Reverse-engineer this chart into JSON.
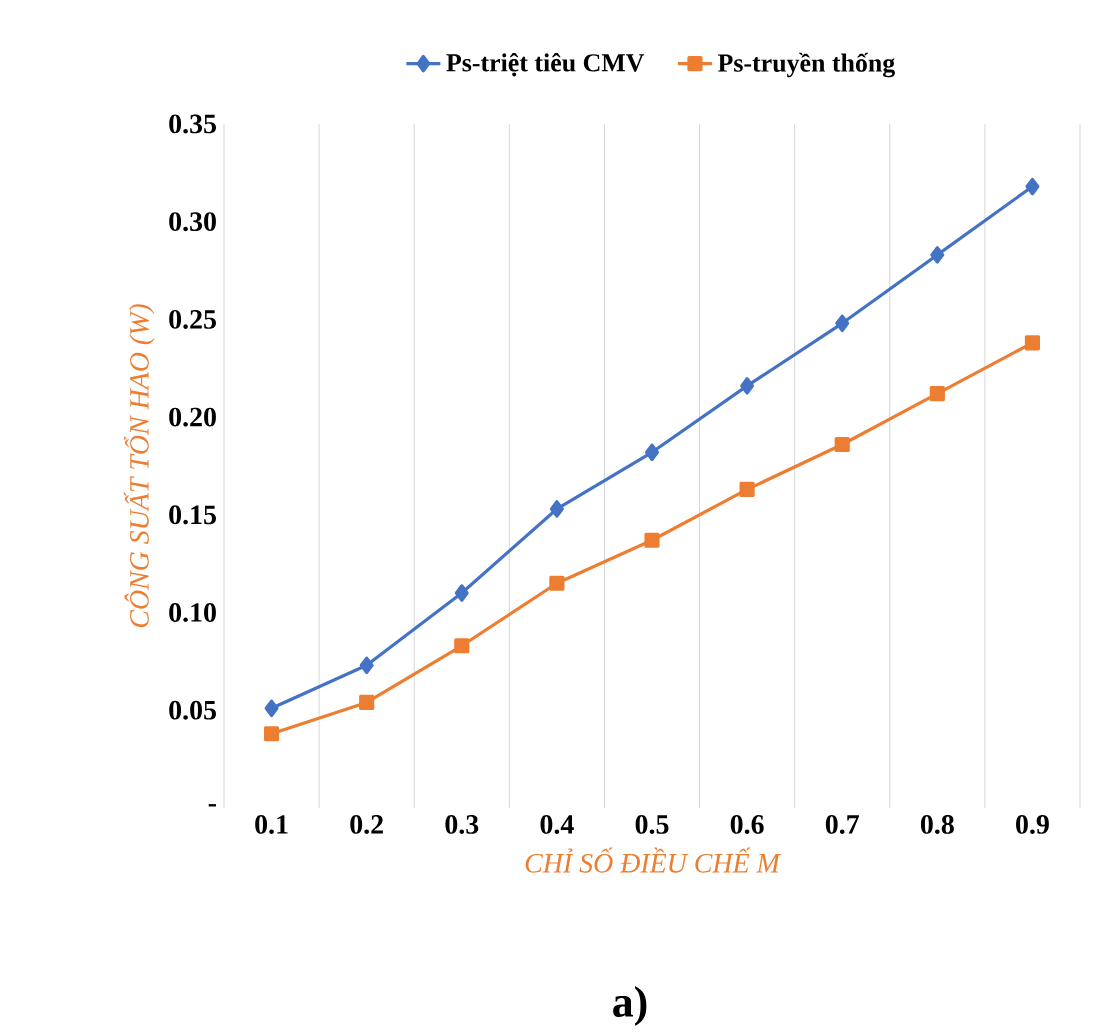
{
  "chart_data": {
    "type": "line",
    "xlabel": "CHỈ SỐ ĐIỀU CHẾ M",
    "ylabel": "CÔNG SUẤT TỔN HAO (W)",
    "categories": [
      "0.1",
      "0.2",
      "0.3",
      "0.4",
      "0.5",
      "0.6",
      "0.7",
      "0.8",
      "0.9"
    ],
    "series": [
      {
        "name": "Ps-triệt tiêu CMV",
        "color": "#4472c4",
        "marker": "diamond",
        "values": [
          0.051,
          0.073,
          0.11,
          0.153,
          0.182,
          0.216,
          0.248,
          0.283,
          0.318
        ]
      },
      {
        "name": "Ps-truyền thống",
        "color": "#ed7d31",
        "marker": "square",
        "values": [
          0.038,
          0.054,
          0.083,
          0.115,
          0.137,
          0.163,
          0.186,
          0.212,
          0.238
        ]
      }
    ],
    "ylim": [
      0,
      0.35
    ],
    "yticks": [
      {
        "value": 0,
        "label": "-"
      },
      {
        "value": 0.05,
        "label": "0.05"
      },
      {
        "value": 0.1,
        "label": "0.10"
      },
      {
        "value": 0.15,
        "label": "0.15"
      },
      {
        "value": 0.2,
        "label": "0.20"
      },
      {
        "value": 0.25,
        "label": "0.25"
      },
      {
        "value": 0.3,
        "label": "0.30"
      },
      {
        "value": 0.35,
        "label": "0.35"
      }
    ],
    "grid": "x",
    "legend": "top",
    "annotations": [
      "a)"
    ]
  }
}
